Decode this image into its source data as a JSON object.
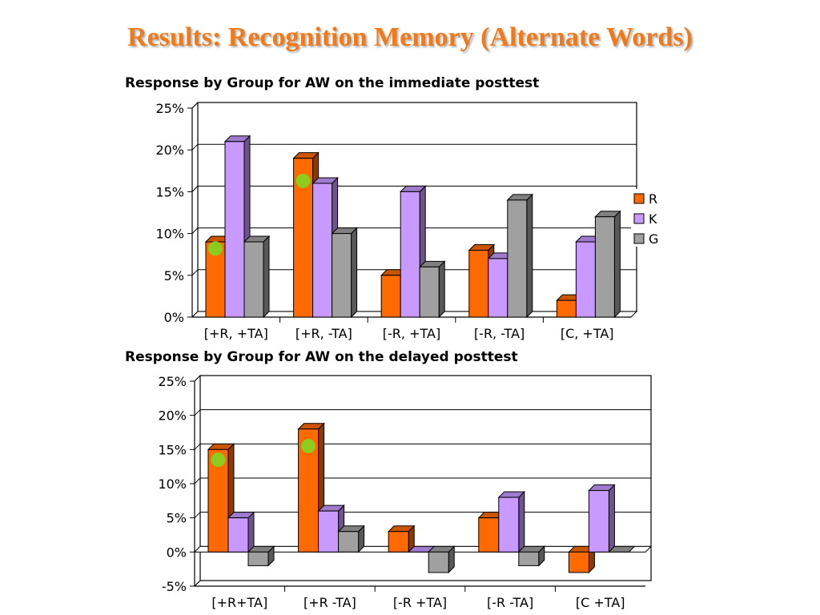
{
  "slide": {
    "title": "Results: Recognition Memory (Alternate Words)"
  },
  "colors": {
    "R": "#ff6a00",
    "K": "#c899ff",
    "G": "#a0a0a0",
    "marker": "#8ccc1e",
    "title": "#f07a1a"
  },
  "chart_data": [
    {
      "type": "bar",
      "title": "Response by Group for AW on the immediate posttest",
      "categories": [
        "[+R, +TA]",
        "[+R, -TA]",
        "[-R, +TA]",
        "[-R, -TA]",
        "[C, +TA]"
      ],
      "series": [
        {
          "name": "R",
          "values": [
            9,
            19,
            5,
            8,
            2
          ]
        },
        {
          "name": "K",
          "values": [
            21,
            16,
            15,
            7,
            9
          ]
        },
        {
          "name": "G",
          "values": [
            9,
            10,
            6,
            14,
            12
          ]
        }
      ],
      "ylim": [
        0,
        25
      ],
      "yticks": [
        "0%",
        "5%",
        "10%",
        "15%",
        "20%",
        "25%"
      ],
      "grid": true,
      "legend_position": "right",
      "markers": [
        {
          "category": 0,
          "series": "R",
          "value": 8.2
        },
        {
          "category": 1,
          "series": "R",
          "value": 16.3
        }
      ]
    },
    {
      "type": "bar",
      "title": "Response by Group for AW on the delayed posttest",
      "categories": [
        "[+R+TA]",
        "[+R -TA]",
        "[-R +TA]",
        "[-R -TA]",
        "[C +TA]"
      ],
      "series": [
        {
          "name": "R",
          "values": [
            15,
            18,
            3,
            5,
            -3
          ]
        },
        {
          "name": "K",
          "values": [
            5,
            6,
            0,
            8,
            9
          ]
        },
        {
          "name": "G",
          "values": [
            -2,
            3,
            -3,
            -2,
            0
          ]
        }
      ],
      "ylim": [
        -5,
        25
      ],
      "yticks": [
        "-5%",
        "0%",
        "5%",
        "10%",
        "15%",
        "20%",
        "25%"
      ],
      "grid": true,
      "markers": [
        {
          "category": 0,
          "series": "R",
          "value": 13.5
        },
        {
          "category": 1,
          "series": "R",
          "value": 15.5
        }
      ]
    }
  ]
}
